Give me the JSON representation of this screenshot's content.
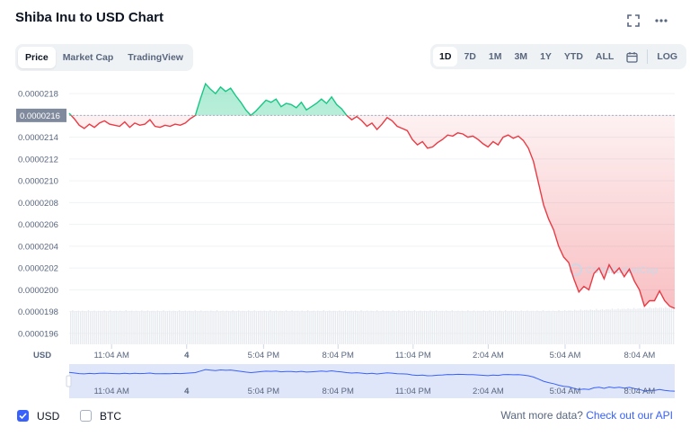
{
  "header": {
    "title": "Shiba Inu to USD Chart",
    "fullscreen_icon": "fullscreen-icon",
    "more_icon": "more-icon"
  },
  "tabs_left": [
    "Price",
    "Market Cap",
    "TradingView"
  ],
  "tabs_left_active": 0,
  "tabs_right": [
    "1D",
    "7D",
    "1M",
    "3M",
    "1Y",
    "YTD",
    "ALL"
  ],
  "tabs_right_active": 0,
  "calendar_icon": "calendar-icon",
  "log_label": "LOG",
  "colors": {
    "up": "#16c784",
    "down": "#ea3943",
    "volume": "#e6e9ee",
    "navigator": "#dde3f9",
    "navigator_line": "#3861fb",
    "accent": "#3861fb",
    "current_badge": "#808a9d"
  },
  "chart_data": {
    "type": "line",
    "y_axis": {
      "min": 1.95e-05,
      "max": 2.19e-05,
      "ticks": [
        "0.0000218",
        "0.0000216",
        "0.0000214",
        "0.0000212",
        "0.0000210",
        "0.0000208",
        "0.0000206",
        "0.0000204",
        "0.0000202",
        "0.0000200",
        "0.0000198",
        "0.0000196"
      ],
      "tick_values": [
        2.18e-05,
        2.16e-05,
        2.14e-05,
        2.12e-05,
        2.1e-05,
        2.08e-05,
        2.06e-05,
        2.04e-05,
        2.02e-05,
        2e-05,
        1.98e-05,
        1.96e-05
      ]
    },
    "baseline": 2.16e-05,
    "baseline_label": "0.0000216",
    "x_labels": [
      "11:04 AM",
      "4",
      "5:04 PM",
      "8:04 PM",
      "11:04 PM",
      "2:04 AM",
      "5:04 AM",
      "8:04 AM"
    ],
    "x_label_bold": [
      false,
      true,
      false,
      false,
      false,
      false,
      false,
      false
    ],
    "x_tick_positions": [
      0.07,
      0.194,
      0.321,
      0.444,
      0.568,
      0.692,
      0.819,
      0.942
    ],
    "currency_label": "USD",
    "watermark": "CoinMarketCap",
    "series": [
      {
        "values": [
          2.162e-05,
          2.157e-05,
          2.151e-05,
          2.148e-05,
          2.152e-05,
          2.149e-05,
          2.153e-05,
          2.155e-05,
          2.152e-05,
          2.151e-05,
          2.15e-05,
          2.154e-05,
          2.149e-05,
          2.153e-05,
          2.151e-05,
          2.152e-05,
          2.156e-05,
          2.15e-05,
          2.149e-05,
          2.151e-05,
          2.15e-05,
          2.152e-05,
          2.151e-05,
          2.153e-05,
          2.157e-05,
          2.16e-05,
          2.175e-05,
          2.189e-05,
          2.184e-05,
          2.18e-05,
          2.186e-05,
          2.182e-05,
          2.185e-05,
          2.178e-05,
          2.172e-05,
          2.165e-05,
          2.16e-05,
          2.164e-05,
          2.169e-05,
          2.174e-05,
          2.172e-05,
          2.175e-05,
          2.168e-05,
          2.171e-05,
          2.17e-05,
          2.167e-05,
          2.172e-05,
          2.165e-05,
          2.168e-05,
          2.171e-05,
          2.175e-05,
          2.171e-05,
          2.177e-05,
          2.17e-05,
          2.166e-05,
          2.16e-05,
          2.156e-05,
          2.159e-05,
          2.155e-05,
          2.15e-05,
          2.153e-05,
          2.147e-05,
          2.152e-05,
          2.158e-05,
          2.155e-05,
          2.15e-05,
          2.148e-05,
          2.146e-05,
          2.138e-05,
          2.133e-05,
          2.136e-05,
          2.13e-05,
          2.131e-05,
          2.135e-05,
          2.138e-05,
          2.142e-05,
          2.141e-05,
          2.144e-05,
          2.143e-05,
          2.14e-05,
          2.141e-05,
          2.138e-05,
          2.134e-05,
          2.131e-05,
          2.136e-05,
          2.133e-05,
          2.14e-05,
          2.142e-05,
          2.139e-05,
          2.141e-05,
          2.137e-05,
          2.13e-05,
          2.118e-05,
          2.098e-05,
          2.078e-05,
          2.065e-05,
          2.055e-05,
          2.04e-05,
          2.03e-05,
          2.025e-05,
          2.01e-05,
          1.998e-05,
          2.003e-05,
          2e-05,
          2.015e-05,
          2.02e-05,
          2.01e-05,
          2.023e-05,
          2.015e-05,
          2.02e-05,
          2.012e-05,
          2.019e-05,
          2.008e-05,
          2e-05,
          1.985e-05,
          1.99e-05,
          1.99e-05,
          1.999e-05,
          1.99e-05,
          1.985e-05,
          1.983e-05
        ]
      }
    ]
  },
  "footer": {
    "usd_label": "USD",
    "btc_label": "BTC",
    "api_text": "Want more data?",
    "api_link": "Check out our API"
  }
}
